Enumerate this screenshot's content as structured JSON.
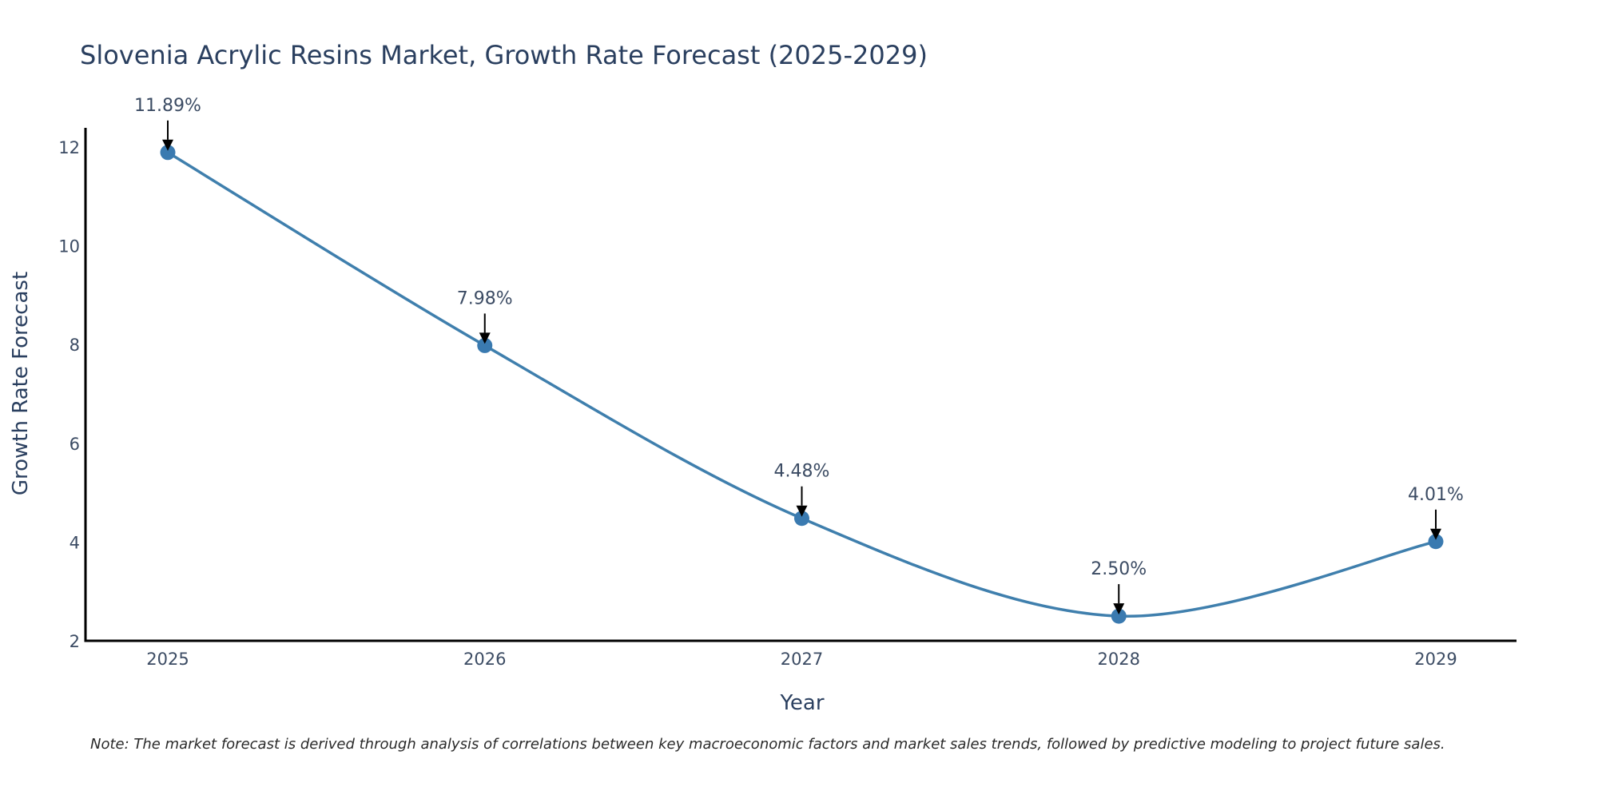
{
  "chart_data": {
    "type": "line",
    "title": "Slovenia Acrylic Resins Market, Growth Rate Forecast (2025-2029)",
    "xlabel": "Year",
    "ylabel": "Growth Rate Forecast",
    "categories": [
      "2025",
      "2026",
      "2027",
      "2028",
      "2029"
    ],
    "values": [
      11.89,
      7.98,
      4.48,
      2.5,
      4.01
    ],
    "data_labels": [
      "11.89%",
      "7.98%",
      "4.48%",
      "2.50%",
      "4.01%"
    ],
    "ylim": [
      2,
      12.4
    ],
    "yticks": [
      2,
      4,
      6,
      8,
      10,
      12
    ],
    "line_color": "#3f7fad",
    "marker_color": "#3a7ab0",
    "grid": false,
    "line_shape": "spline"
  },
  "note": "Note: The market forecast is derived through analysis of correlations between key macroeconomic factors and market sales trends, followed by predictive modeling to project future sales."
}
